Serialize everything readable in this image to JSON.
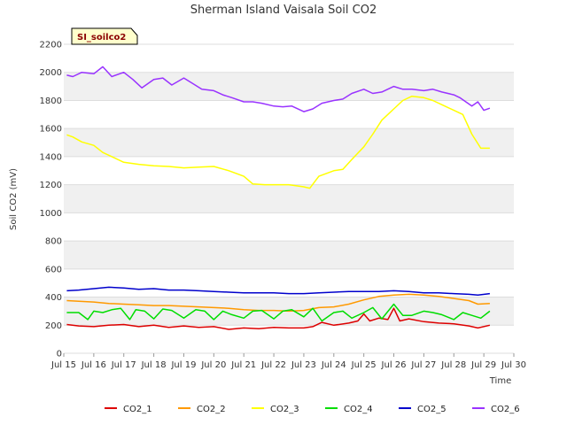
{
  "chart_data": {
    "type": "line",
    "title": "Sherman Island Vaisala Soil CO2",
    "xlabel": "Time",
    "ylabel": "Soil CO2 (mV)",
    "site_tag": "SI_soilco2",
    "ylim": [
      0,
      2200
    ],
    "yticks": [
      0,
      200,
      400,
      600,
      800,
      1000,
      1200,
      1400,
      1600,
      1800,
      2000,
      2200
    ],
    "xlim": [
      15,
      30
    ],
    "xticks": [
      {
        "v": 15,
        "label": "Jul 15"
      },
      {
        "v": 16,
        "label": "Jul 16"
      },
      {
        "v": 17,
        "label": "Jul 17"
      },
      {
        "v": 18,
        "label": "Jul 18"
      },
      {
        "v": 19,
        "label": "Jul 19"
      },
      {
        "v": 20,
        "label": "Jul 20"
      },
      {
        "v": 21,
        "label": "Jul 21"
      },
      {
        "v": 22,
        "label": "Jul 22"
      },
      {
        "v": 23,
        "label": "Jul 23"
      },
      {
        "v": 24,
        "label": "Jul 24"
      },
      {
        "v": 25,
        "label": "Jul 25"
      },
      {
        "v": 26,
        "label": "Jul 26"
      },
      {
        "v": 27,
        "label": "Jul 27"
      },
      {
        "v": 28,
        "label": "Jul 28"
      },
      {
        "v": 29,
        "label": "Jul 29"
      },
      {
        "v": 30,
        "label": "Jul 30"
      }
    ],
    "grid": true,
    "legend_position": "bottom",
    "series": [
      {
        "name": "CO2_1",
        "color": "#dd0000",
        "x": [
          15.1,
          15.5,
          16.0,
          16.5,
          17.0,
          17.5,
          18.0,
          18.5,
          19.0,
          19.5,
          20.0,
          20.5,
          21.0,
          21.5,
          22.0,
          22.5,
          23.0,
          23.3,
          23.6,
          24.0,
          24.5,
          24.8,
          25.0,
          25.2,
          25.5,
          25.8,
          26.0,
          26.2,
          26.5,
          27.0,
          27.5,
          28.0,
          28.5,
          28.8,
          29.2
        ],
        "y": [
          205,
          195,
          190,
          200,
          205,
          190,
          200,
          185,
          195,
          185,
          190,
          170,
          180,
          175,
          185,
          180,
          180,
          190,
          220,
          200,
          215,
          230,
          280,
          230,
          250,
          240,
          320,
          230,
          245,
          225,
          215,
          210,
          195,
          180,
          200
        ]
      },
      {
        "name": "CO2_2",
        "color": "#ff9900",
        "x": [
          15.1,
          15.5,
          16.0,
          16.5,
          17.0,
          17.5,
          18.0,
          18.5,
          19.0,
          19.5,
          20.0,
          20.5,
          21.0,
          21.5,
          22.0,
          22.5,
          23.0,
          23.5,
          24.0,
          24.5,
          25.0,
          25.5,
          26.0,
          26.5,
          27.0,
          27.5,
          28.0,
          28.5,
          28.8,
          29.2
        ],
        "y": [
          375,
          370,
          365,
          355,
          350,
          345,
          340,
          340,
          335,
          330,
          325,
          320,
          310,
          305,
          305,
          300,
          305,
          325,
          330,
          350,
          380,
          405,
          415,
          420,
          415,
          405,
          390,
          375,
          350,
          355
        ]
      },
      {
        "name": "CO2_3",
        "color": "#ffff00",
        "x": [
          15.1,
          15.3,
          15.6,
          16.0,
          16.3,
          16.6,
          17.0,
          17.5,
          18.0,
          18.5,
          19.0,
          19.5,
          20.0,
          20.5,
          21.0,
          21.3,
          21.7,
          22.0,
          22.5,
          23.0,
          23.2,
          23.5,
          24.0,
          24.3,
          24.6,
          25.0,
          25.3,
          25.6,
          26.0,
          26.3,
          26.6,
          27.0,
          27.3,
          27.7,
          28.0,
          28.3,
          28.6,
          28.9,
          29.2
        ],
        "y": [
          1555,
          1540,
          1505,
          1480,
          1430,
          1400,
          1360,
          1345,
          1335,
          1330,
          1320,
          1325,
          1330,
          1300,
          1260,
          1205,
          1200,
          1200,
          1200,
          1185,
          1175,
          1260,
          1300,
          1310,
          1380,
          1470,
          1560,
          1660,
          1740,
          1800,
          1830,
          1820,
          1800,
          1760,
          1730,
          1700,
          1560,
          1460,
          1460
        ]
      },
      {
        "name": "CO2_4",
        "color": "#00dd00",
        "x": [
          15.1,
          15.5,
          15.8,
          16.0,
          16.3,
          16.6,
          16.9,
          17.2,
          17.4,
          17.7,
          18.0,
          18.3,
          18.6,
          19.0,
          19.4,
          19.7,
          20.0,
          20.3,
          20.6,
          21.0,
          21.3,
          21.6,
          22.0,
          22.3,
          22.6,
          23.0,
          23.3,
          23.6,
          24.0,
          24.3,
          24.6,
          25.0,
          25.3,
          25.6,
          26.0,
          26.3,
          26.6,
          27.0,
          27.3,
          27.6,
          28.0,
          28.3,
          28.6,
          28.9,
          29.2
        ],
        "y": [
          290,
          290,
          240,
          300,
          290,
          310,
          320,
          240,
          310,
          300,
          245,
          315,
          305,
          250,
          310,
          300,
          240,
          300,
          275,
          250,
          300,
          305,
          245,
          300,
          310,
          260,
          320,
          230,
          290,
          300,
          250,
          290,
          325,
          245,
          350,
          270,
          270,
          300,
          290,
          275,
          240,
          290,
          270,
          250,
          300
        ]
      },
      {
        "name": "CO2_5",
        "color": "#0000cc",
        "x": [
          15.1,
          15.5,
          16.0,
          16.5,
          17.0,
          17.5,
          18.0,
          18.5,
          19.0,
          19.5,
          20.0,
          20.5,
          21.0,
          21.5,
          22.0,
          22.5,
          23.0,
          23.5,
          24.0,
          24.5,
          25.0,
          25.5,
          26.0,
          26.5,
          27.0,
          27.5,
          28.0,
          28.5,
          28.8,
          29.2
        ],
        "y": [
          445,
          450,
          460,
          470,
          465,
          455,
          460,
          450,
          450,
          445,
          440,
          435,
          430,
          430,
          430,
          425,
          425,
          430,
          435,
          440,
          440,
          440,
          445,
          440,
          430,
          430,
          425,
          420,
          415,
          425
        ]
      },
      {
        "name": "CO2_6",
        "color": "#9933ff",
        "x": [
          15.1,
          15.3,
          15.6,
          16.0,
          16.3,
          16.6,
          17.0,
          17.3,
          17.6,
          18.0,
          18.3,
          18.6,
          19.0,
          19.3,
          19.6,
          20.0,
          20.3,
          20.6,
          21.0,
          21.3,
          21.6,
          22.0,
          22.3,
          22.6,
          23.0,
          23.3,
          23.6,
          24.0,
          24.3,
          24.6,
          25.0,
          25.3,
          25.6,
          26.0,
          26.3,
          26.6,
          27.0,
          27.3,
          27.6,
          28.0,
          28.2,
          28.4,
          28.6,
          28.8,
          29.0,
          29.2
        ],
        "y": [
          1980,
          1970,
          2000,
          1990,
          2040,
          1970,
          2000,
          1950,
          1890,
          1950,
          1960,
          1910,
          1960,
          1920,
          1880,
          1870,
          1840,
          1820,
          1790,
          1790,
          1780,
          1760,
          1755,
          1760,
          1720,
          1740,
          1780,
          1800,
          1810,
          1850,
          1880,
          1850,
          1860,
          1900,
          1880,
          1880,
          1870,
          1880,
          1860,
          1840,
          1820,
          1790,
          1760,
          1790,
          1730,
          1745
        ]
      }
    ]
  }
}
